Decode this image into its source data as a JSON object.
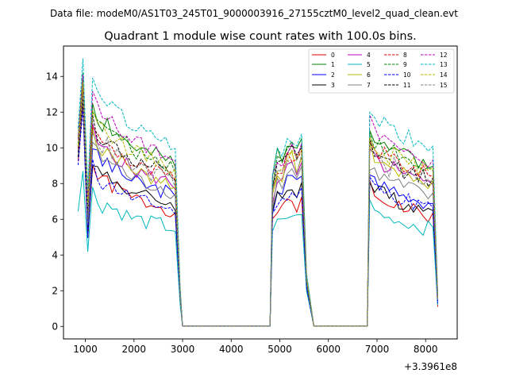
{
  "figure": {
    "suptitle": "Data file: modeM0/AS1T03_245T01_9000003916_27155cztM0_level2_quad_clean.evt"
  },
  "chart_data": {
    "type": "line",
    "title": "Quadrant 1 module wise count rates with 100.0s bins.",
    "xlabel": "",
    "ylabel": "",
    "x_offset_label": "+3.3961e8",
    "xlim": [
      550,
      8650
    ],
    "ylim": [
      -0.7,
      15.7
    ],
    "xticks": [
      1000,
      2000,
      3000,
      4000,
      5000,
      6000,
      7000,
      8000
    ],
    "yticks": [
      0,
      2,
      4,
      6,
      8,
      10,
      12,
      14
    ],
    "legend_position": "upper-right",
    "legend_columns": 4,
    "segments": [
      [
        850,
        2950
      ],
      [
        4850,
        5650
      ],
      [
        6850,
        8250
      ]
    ],
    "segment_profiles": {
      "seg1": [
        1.0,
        1.0,
        0.55,
        1.0,
        0.93,
        0.89,
        0.91,
        0.87,
        0.86,
        0.84,
        0.82,
        0.8,
        0.79,
        0.78,
        0.77,
        0.76,
        0.76,
        0.75,
        0.74,
        0.73,
        0.72,
        0.0
      ],
      "seg2": [
        0.68,
        0.8,
        0.78,
        0.84,
        0.86,
        0.82,
        0.89,
        0.0
      ],
      "seg3": [
        0.91,
        0.86,
        0.84,
        0.83,
        0.8,
        0.82,
        0.79,
        0.77,
        0.78,
        0.76,
        0.75,
        0.74,
        0.73,
        0.75,
        0.0
      ]
    },
    "series": [
      {
        "name": "0",
        "color": "#e00000",
        "dash": "solid",
        "peak": 12.5,
        "levels": [
          9.0,
          8.2,
          8.5
        ],
        "seg1_end": 2.0,
        "seg2_end": 2.3,
        "seg3_end": 1.1,
        "seed": 1
      },
      {
        "name": "1",
        "color": "#008000",
        "dash": "solid",
        "peak": 14.2,
        "levels": [
          12.6,
          12.2,
          12.4
        ],
        "seg1_end": 1.8,
        "seg2_end": 2.8,
        "seg3_end": 1.6,
        "seed": 2
      },
      {
        "name": "2",
        "color": "#0000ff",
        "dash": "solid",
        "peak": 13.2,
        "levels": [
          10.2,
          9.7,
          9.5
        ],
        "seg1_end": 1.7,
        "seg2_end": 2.5,
        "seg3_end": 1.3,
        "seed": 3
      },
      {
        "name": "3",
        "color": "#000000",
        "dash": "solid",
        "peak": 12.8,
        "levels": [
          9.4,
          9.2,
          8.9
        ],
        "seg1_end": 1.5,
        "seg2_end": 2.2,
        "seg3_end": 1.4,
        "seed": 4
      },
      {
        "name": "4",
        "color": "#c000c0",
        "dash": "solid",
        "peak": 13.5,
        "levels": [
          11.0,
          10.4,
          10.8
        ],
        "seg1_end": 1.9,
        "seg2_end": 2.6,
        "seg3_end": 1.5,
        "seed": 5
      },
      {
        "name": "5",
        "color": "#00b8c0",
        "dash": "solid",
        "peak": 8.7,
        "levels": [
          7.6,
          7.3,
          7.5
        ],
        "seg1_end": 1.2,
        "seg2_end": 2.0,
        "seg3_end": 1.2,
        "seed": 6
      },
      {
        "name": "6",
        "color": "#b8b800",
        "dash": "solid",
        "peak": 13.6,
        "levels": [
          11.0,
          10.9,
          11.0
        ],
        "seg1_end": 1.6,
        "seg2_end": 2.7,
        "seg3_end": 1.6,
        "seed": 7
      },
      {
        "name": "7",
        "color": "#808080",
        "dash": "solid",
        "peak": 12.9,
        "levels": [
          10.4,
          10.2,
          10.0
        ],
        "seg1_end": 1.7,
        "seg2_end": 2.4,
        "seg3_end": 1.5,
        "seed": 8
      },
      {
        "name": "8",
        "color": "#e00000",
        "dash": "dashed",
        "peak": 13.4,
        "levels": [
          11.4,
          11.1,
          11.6
        ],
        "seg1_end": 1.9,
        "seg2_end": 2.6,
        "seg3_end": 1.6,
        "seed": 9
      },
      {
        "name": "9",
        "color": "#008000",
        "dash": "dashed",
        "peak": 13.8,
        "levels": [
          12.4,
          11.8,
          12.0
        ],
        "seg1_end": 1.8,
        "seg2_end": 2.8,
        "seg3_end": 1.7,
        "seed": 10
      },
      {
        "name": "10",
        "color": "#0000ff",
        "dash": "dashed",
        "peak": 12.2,
        "levels": [
          9.0,
          8.9,
          9.1
        ],
        "seg1_end": 1.6,
        "seg2_end": 2.2,
        "seg3_end": 1.3,
        "seed": 11
      },
      {
        "name": "11",
        "color": "#000000",
        "dash": "dashed",
        "peak": 12.9,
        "levels": [
          11.6,
          11.4,
          11.3
        ],
        "seg1_end": 1.7,
        "seg2_end": 2.5,
        "seg3_end": 1.5,
        "seed": 12
      },
      {
        "name": "12",
        "color": "#c000c0",
        "dash": "dashed",
        "peak": 14.1,
        "levels": [
          13.1,
          11.9,
          12.6
        ],
        "seg1_end": 2.0,
        "seg2_end": 2.9,
        "seg3_end": 1.7,
        "seed": 13
      },
      {
        "name": "13",
        "color": "#00b8c0",
        "dash": "dashed",
        "peak": 15.0,
        "levels": [
          14.0,
          12.4,
          13.6
        ],
        "seg1_end": 2.2,
        "seg2_end": 3.0,
        "seg3_end": 1.8,
        "seed": 14
      },
      {
        "name": "14",
        "color": "#b8b800",
        "dash": "dashed",
        "peak": 13.7,
        "levels": [
          12.3,
          11.3,
          11.9
        ],
        "seg1_end": 1.8,
        "seg2_end": 2.7,
        "seg3_end": 1.6,
        "seed": 15
      },
      {
        "name": "15",
        "color": "#808080",
        "dash": "dashed",
        "peak": 13.0,
        "levels": [
          11.2,
          10.9,
          11.0
        ],
        "seg1_end": 1.7,
        "seg2_end": 2.5,
        "seg3_end": 1.5,
        "seed": 16
      }
    ]
  }
}
